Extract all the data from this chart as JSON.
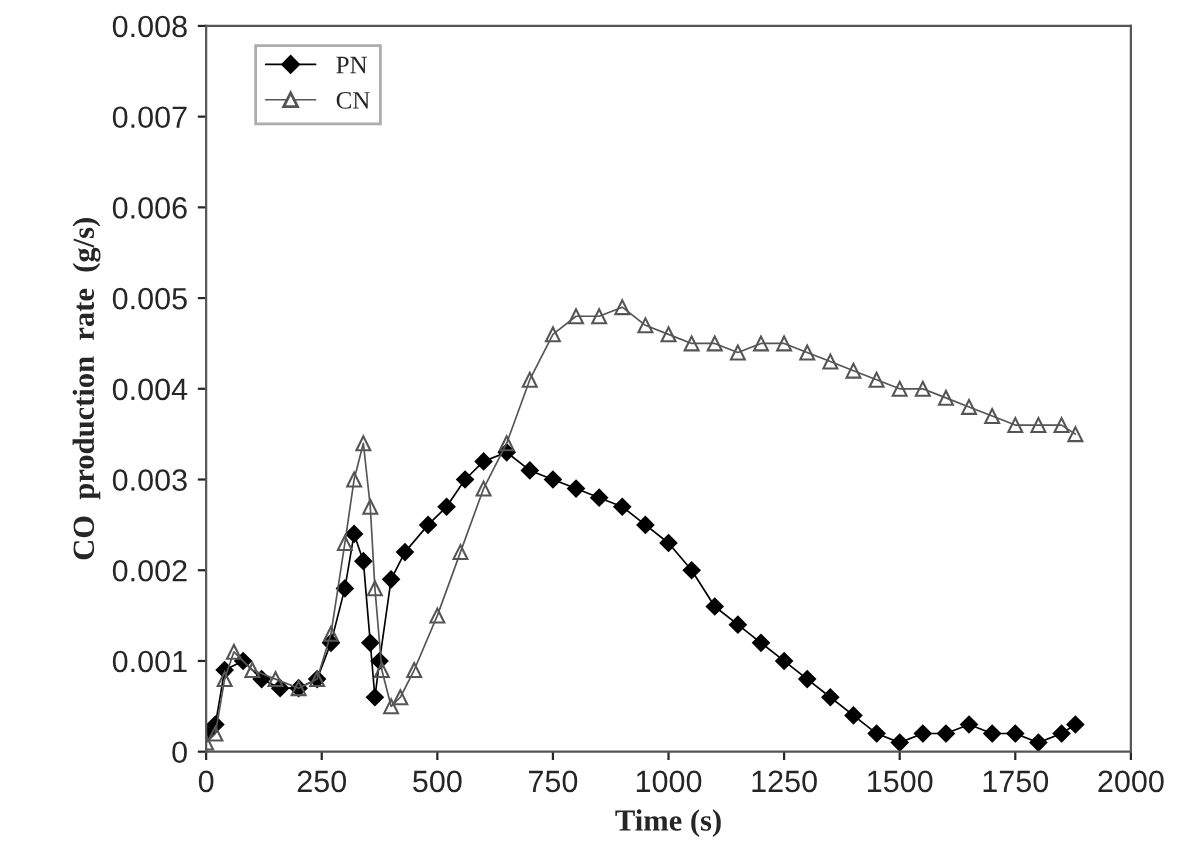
{
  "chart_data": {
    "type": "line",
    "xlabel": "Time (s)",
    "ylabel": "CO  production  rate  (g/s)",
    "xlim": [
      0,
      2000
    ],
    "xticks": [
      0,
      250,
      500,
      750,
      1000,
      1250,
      1500,
      1750,
      2000
    ],
    "ylim": [
      0,
      0.008
    ],
    "yticks": [
      0,
      0.001,
      0.002,
      0.003,
      0.004,
      0.005,
      0.006,
      0.007,
      0.008
    ],
    "grid": false,
    "legend": "top left",
    "line_style": "solid",
    "series": [
      {
        "name": "PN",
        "color": "#000000",
        "marker": "diamond",
        "x": [
          0,
          20,
          40,
          80,
          120,
          160,
          200,
          240,
          270,
          300,
          320,
          340,
          355,
          365,
          375,
          400,
          430,
          480,
          520,
          560,
          600,
          650,
          700,
          750,
          800,
          850,
          900,
          950,
          1000,
          1050,
          1100,
          1150,
          1200,
          1250,
          1300,
          1350,
          1400,
          1450,
          1500,
          1550,
          1600,
          1650,
          1700,
          1750,
          1800,
          1850,
          1880
        ],
        "values": [
          0.0002,
          0.0003,
          0.0009,
          0.001,
          0.0008,
          0.0007,
          0.0007,
          0.0008,
          0.0012,
          0.0018,
          0.0024,
          0.0021,
          0.0012,
          0.0006,
          0.001,
          0.0019,
          0.0022,
          0.0025,
          0.0027,
          0.003,
          0.0032,
          0.0033,
          0.0031,
          0.003,
          0.0029,
          0.0028,
          0.0027,
          0.0025,
          0.0023,
          0.002,
          0.0016,
          0.0014,
          0.0012,
          0.001,
          0.0008,
          0.0006,
          0.0004,
          0.0002,
          0.0001,
          0.0002,
          0.0002,
          0.0003,
          0.0002,
          0.0002,
          0.0001,
          0.0002,
          0.0003
        ]
      },
      {
        "name": "CN",
        "color": "#555555",
        "marker": "triangle",
        "x": [
          0,
          20,
          40,
          60,
          100,
          150,
          200,
          240,
          270,
          300,
          320,
          340,
          355,
          365,
          380,
          400,
          420,
          450,
          500,
          550,
          600,
          650,
          700,
          750,
          800,
          850,
          900,
          950,
          1000,
          1050,
          1100,
          1150,
          1200,
          1250,
          1300,
          1350,
          1400,
          1450,
          1500,
          1550,
          1600,
          1650,
          1700,
          1750,
          1800,
          1850,
          1880
        ],
        "values": [
          0.0001,
          0.0002,
          0.0008,
          0.0011,
          0.0009,
          0.0008,
          0.0007,
          0.0008,
          0.0013,
          0.0023,
          0.003,
          0.0034,
          0.0027,
          0.0018,
          0.0009,
          0.0005,
          0.0006,
          0.0009,
          0.0015,
          0.0022,
          0.0029,
          0.0034,
          0.0041,
          0.0046,
          0.0048,
          0.0048,
          0.0049,
          0.0047,
          0.0046,
          0.0045,
          0.0045,
          0.0044,
          0.0045,
          0.0045,
          0.0044,
          0.0043,
          0.0042,
          0.0041,
          0.004,
          0.004,
          0.0039,
          0.0038,
          0.0037,
          0.0036,
          0.0036,
          0.0036,
          0.0035
        ]
      }
    ]
  }
}
